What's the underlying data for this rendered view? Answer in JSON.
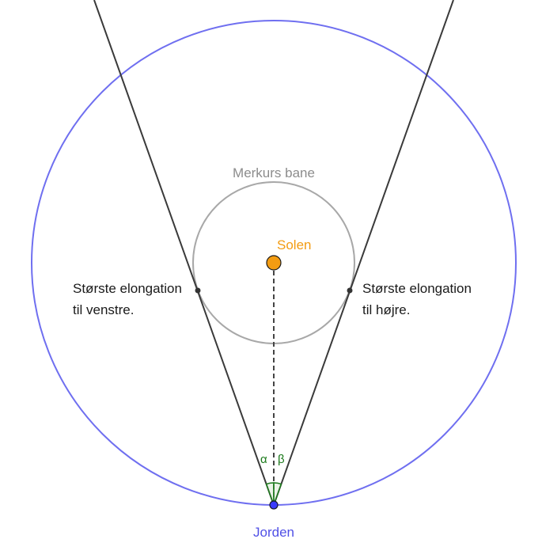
{
  "colors": {
    "earth_orbit": "#6f6ff0",
    "mercury_orbit": "#a8a8a8",
    "sight_lines": "#3a3a3a",
    "dashed_line": "#444444",
    "sun_fill": "#f39c12",
    "earth_fill": "#3b3bff",
    "angle_arc": "#1b7a1b"
  },
  "labels": {
    "mercury_orbit": "Merkurs bane",
    "sun": "Solen",
    "earth": "Jorden",
    "left_elongation_line1": "Største elongation",
    "left_elongation_line2": "til venstre.",
    "right_elongation_line1": "Største elongation",
    "right_elongation_line2": "til højre.",
    "angle_alpha": "α",
    "angle_beta": "β"
  }
}
